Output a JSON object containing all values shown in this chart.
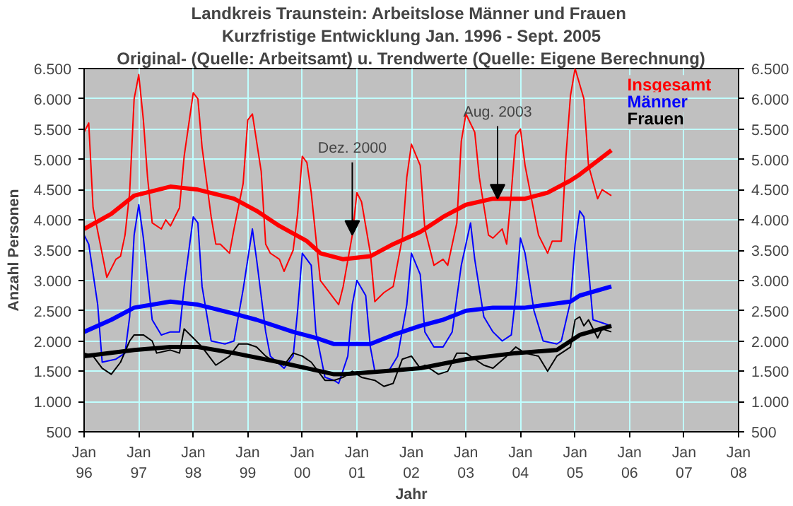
{
  "chart_data": {
    "type": "line",
    "title": "Landkreis Traunstein:  Arbeitslose Männer und Frauen",
    "subtitle": "Kurzfristige Entwicklung Jan. 1996 - Sept. 2005",
    "xlabel": "Jahr",
    "ylabel": "Anzahl Personen",
    "xlim": [
      "1996-01",
      "2008-01"
    ],
    "xticks": [
      {
        "value": "1996-01",
        "label": "Jan\n96"
      },
      {
        "value": "1997-01",
        "label": "Jan\n97"
      },
      {
        "value": "1998-01",
        "label": "Jan\n98"
      },
      {
        "value": "1999-01",
        "label": "Jan\n99"
      },
      {
        "value": "2000-01",
        "label": "Jan\n00"
      },
      {
        "value": "2001-01",
        "label": "Jan\n01"
      },
      {
        "value": "2002-01",
        "label": "Jan\n02"
      },
      {
        "value": "2003-01",
        "label": "Jan\n03"
      },
      {
        "value": "2004-01",
        "label": "Jan\n04"
      },
      {
        "value": "2005-01",
        "label": "Jan\n05"
      },
      {
        "value": "2006-01",
        "label": "Jan\n06"
      },
      {
        "value": "2007-01",
        "label": "Jan\n07"
      },
      {
        "value": "2008-01",
        "label": "Jan\n08"
      }
    ],
    "ylim": [
      500,
      6500
    ],
    "yticks": [
      500,
      {
        "value": 1000,
        "label": "1.000"
      },
      {
        "value": 1500,
        "label": "1.500"
      },
      {
        "value": 2000,
        "label": "2.000"
      },
      {
        "value": 2500,
        "label": "2.500"
      },
      {
        "value": 3000,
        "label": "3.000"
      },
      {
        "value": 3500,
        "label": "3.500"
      },
      {
        "value": 4000,
        "label": "4.000"
      },
      {
        "value": 4500,
        "label": "4.500"
      },
      {
        "value": 5000,
        "label": "5.000"
      },
      {
        "value": 5500,
        "label": "5.500"
      },
      {
        "value": 6000,
        "label": "6.000"
      },
      {
        "value": 6500,
        "label": "6.500"
      }
    ],
    "y2lim": [
      500,
      6500
    ],
    "y2ticks": [
      500,
      {
        "value": 1000,
        "label": "1.000"
      },
      {
        "value": 1500,
        "label": "1.500"
      },
      {
        "value": 2000,
        "label": "2.000"
      },
      {
        "value": 2500,
        "label": "2.500"
      },
      {
        "value": 3000,
        "label": "3.000"
      },
      {
        "value": 3500,
        "label": "3.500"
      },
      {
        "value": 4000,
        "label": "4.000"
      },
      {
        "value": 4500,
        "label": "4.500"
      },
      {
        "value": 5000,
        "label": "5.000"
      },
      {
        "value": 5500,
        "label": "5.500"
      },
      {
        "value": 6000,
        "label": "6.000"
      },
      {
        "value": 6500,
        "label": "6.500"
      }
    ],
    "grid": true,
    "legend": "top right",
    "marker": "none",
    "line_style": "solid",
    "annotations": [
      "Original- (Quelle: Arbeitsamt) u. Trendwerte (Quelle: Eigene Berechnung)",
      {
        "text": "Dez. 2000",
        "x": "2000-12",
        "y": 3750
      },
      {
        "text": "Aug. 2003",
        "x": "2003-08",
        "y": 4350
      }
    ],
    "series": [
      {
        "name": "Insgesamt",
        "color": "#ff0000",
        "x": [
          "1996-01",
          "1996-02",
          "1996-03",
          "1996-06",
          "1996-08",
          "1996-09",
          "1996-10",
          "1996-11",
          "1996-12",
          "1997-01",
          "1997-02",
          "1997-03",
          "1997-04",
          "1997-06",
          "1997-07",
          "1997-08",
          "1997-10",
          "1997-11",
          "1998-01",
          "1998-02",
          "1998-03",
          "1998-05",
          "1998-06",
          "1998-07",
          "1998-09",
          "1998-10",
          "1998-12",
          "1999-01",
          "1999-02",
          "1999-04",
          "1999-05",
          "1999-06",
          "1999-08",
          "1999-09",
          "1999-11",
          "1999-12",
          "2000-01",
          "2000-02",
          "2000-03",
          "2000-05",
          "2000-07",
          "2000-08",
          "2000-09",
          "2000-10",
          "2000-12",
          "2001-01",
          "2001-02",
          "2001-04",
          "2001-05",
          "2001-07",
          "2001-09",
          "2001-11",
          "2001-12",
          "2002-01",
          "2002-03",
          "2002-04",
          "2002-06",
          "2002-08",
          "2002-09",
          "2002-11",
          "2002-12",
          "2003-01",
          "2003-03",
          "2003-04",
          "2003-06",
          "2003-07",
          "2003-09",
          "2003-10",
          "2003-11",
          "2003-12",
          "2004-01",
          "2004-02",
          "2004-05",
          "2004-07",
          "2004-08",
          "2004-10",
          "2004-11",
          "2004-12",
          "2005-01",
          "2005-03",
          "2005-04",
          "2005-06",
          "2005-07",
          "2005-09"
        ],
        "values": [
          5450,
          5600,
          4200,
          3050,
          3350,
          3400,
          3750,
          4450,
          6000,
          6400,
          5650,
          4700,
          3950,
          3850,
          4000,
          3900,
          4200,
          5050,
          6100,
          6000,
          5200,
          4050,
          3600,
          3600,
          3450,
          3850,
          4600,
          5650,
          5750,
          4800,
          3600,
          3450,
          3350,
          3150,
          3500,
          4100,
          5050,
          4950,
          4450,
          3000,
          2800,
          2700,
          2600,
          2900,
          3750,
          4450,
          4300,
          3450,
          2650,
          2800,
          2900,
          3700,
          4700,
          5250,
          4900,
          3850,
          3250,
          3350,
          3250,
          3950,
          5300,
          5750,
          5450,
          4700,
          3750,
          3700,
          3850,
          3600,
          4450,
          5400,
          5500,
          4900,
          3750,
          3450,
          3650,
          3650,
          5050,
          6050,
          6500,
          6000,
          4900,
          4350,
          4500,
          4400
        ]
      },
      {
        "color": "#ff0000",
        "x": [
          "1996-01",
          "1996-07",
          "1996-12",
          "1997-08",
          "1998-02",
          "1998-10",
          "1999-03",
          "1999-08",
          "2000-02",
          "2000-05",
          "2000-10",
          "2001-04",
          "2001-09",
          "2002-03",
          "2002-08",
          "2003-01",
          "2003-07",
          "2004-02",
          "2004-07",
          "2004-12",
          "2005-02",
          "2005-09"
        ],
        "values": [
          3850,
          4100,
          4400,
          4550,
          4500,
          4350,
          4150,
          3900,
          3650,
          3450,
          3350,
          3400,
          3600,
          3800,
          4050,
          4250,
          4350,
          4350,
          4450,
          4650,
          4750,
          5150
        ]
      },
      {
        "name": "Männer",
        "color": "#0000ff",
        "x": [
          "1996-01",
          "1996-02",
          "1996-04",
          "1996-05",
          "1996-08",
          "1996-10",
          "1996-11",
          "1996-12",
          "1997-01",
          "1997-02",
          "1997-04",
          "1997-06",
          "1997-08",
          "1997-10",
          "1997-11",
          "1998-01",
          "1998-02",
          "1998-03",
          "1998-05",
          "1998-08",
          "1998-10",
          "1998-12",
          "1999-02",
          "1999-03",
          "1999-05",
          "1999-06",
          "1999-09",
          "1999-11",
          "1999-12",
          "2000-01",
          "2000-03",
          "2000-04",
          "2000-06",
          "2000-08",
          "2000-09",
          "2000-11",
          "2000-12",
          "2001-01",
          "2001-03",
          "2001-04",
          "2001-05",
          "2001-08",
          "2001-10",
          "2001-12",
          "2002-01",
          "2002-03",
          "2002-04",
          "2002-06",
          "2002-08",
          "2002-10",
          "2002-12",
          "2003-02",
          "2003-03",
          "2003-05",
          "2003-07",
          "2003-09",
          "2003-11",
          "2003-12",
          "2004-01",
          "2004-02",
          "2004-04",
          "2004-06",
          "2004-09",
          "2004-10",
          "2004-12",
          "2005-01",
          "2005-02",
          "2005-03",
          "2005-04",
          "2005-05",
          "2005-07",
          "2005-09"
        ],
        "values": [
          3750,
          3600,
          2600,
          1650,
          1700,
          1800,
          2400,
          3750,
          4250,
          3700,
          2350,
          2100,
          2150,
          2150,
          2900,
          4050,
          3950,
          2900,
          2000,
          1950,
          2000,
          2850,
          3850,
          3350,
          2150,
          1750,
          1550,
          1750,
          2500,
          3450,
          3250,
          2150,
          1400,
          1350,
          1300,
          1750,
          2600,
          3000,
          2750,
          1900,
          1500,
          1500,
          1750,
          2600,
          3450,
          3100,
          2150,
          1900,
          1900,
          2150,
          3250,
          3950,
          3350,
          2400,
          2150,
          2000,
          2100,
          2750,
          3700,
          3450,
          2500,
          2000,
          1950,
          2000,
          2650,
          3600,
          4150,
          4050,
          3200,
          2350,
          2300,
          2250
        ]
      },
      {
        "color": "#0000ff",
        "x": [
          "1996-01",
          "1996-07",
          "1996-12",
          "1997-08",
          "1998-02",
          "1998-10",
          "1999-03",
          "1999-11",
          "2000-04",
          "2000-08",
          "2000-10",
          "2001-04",
          "2001-09",
          "2002-03",
          "2002-08",
          "2003-01",
          "2003-07",
          "2004-02",
          "2004-12",
          "2005-02",
          "2005-09"
        ],
        "values": [
          2150,
          2350,
          2550,
          2650,
          2600,
          2450,
          2350,
          2150,
          2050,
          1950,
          1950,
          1950,
          2100,
          2250,
          2350,
          2500,
          2550,
          2550,
          2650,
          2750,
          2900
        ]
      },
      {
        "name": "Frauen",
        "color": "#000000",
        "x": [
          "1996-01",
          "1996-03",
          "1996-05",
          "1996-07",
          "1996-09",
          "1996-11",
          "1996-12",
          "1997-02",
          "1997-04",
          "1997-05",
          "1997-08",
          "1997-10",
          "1997-11",
          "1998-01",
          "1998-03",
          "1998-06",
          "1998-09",
          "1998-11",
          "1999-01",
          "1999-03",
          "1999-05",
          "1999-07",
          "1999-09",
          "1999-11",
          "2000-01",
          "2000-03",
          "2000-06",
          "2000-08",
          "2000-10",
          "2000-12",
          "2001-02",
          "2001-05",
          "2001-07",
          "2001-09",
          "2001-11",
          "2002-01",
          "2002-03",
          "2002-04",
          "2002-07",
          "2002-09",
          "2002-11",
          "2003-01",
          "2003-03",
          "2003-05",
          "2003-07",
          "2003-10",
          "2003-12",
          "2004-02",
          "2004-05",
          "2004-07",
          "2004-09",
          "2004-12",
          "2005-01",
          "2005-02",
          "2005-03",
          "2005-04",
          "2005-06",
          "2005-07",
          "2005-09"
        ],
        "values": [
          1800,
          1750,
          1550,
          1450,
          1650,
          2000,
          2100,
          2100,
          2000,
          1800,
          1850,
          1800,
          2200,
          2050,
          1900,
          1600,
          1750,
          1950,
          1950,
          1900,
          1750,
          1650,
          1600,
          1800,
          1750,
          1650,
          1350,
          1350,
          1400,
          1500,
          1400,
          1350,
          1250,
          1300,
          1700,
          1750,
          1550,
          1600,
          1450,
          1500,
          1800,
          1800,
          1700,
          1600,
          1550,
          1750,
          1900,
          1800,
          1750,
          1500,
          1750,
          1900,
          2350,
          2400,
          2250,
          2350,
          2050,
          2200,
          2150
        ]
      },
      {
        "color": "#000000",
        "x": [
          "1996-01",
          "1996-12",
          "1997-08",
          "1998-02",
          "1998-10",
          "1999-08",
          "2000-08",
          "2000-10",
          "2001-07",
          "2002-03",
          "2003-01",
          "2003-12",
          "2004-09",
          "2005-02",
          "2005-09"
        ],
        "values": [
          1750,
          1850,
          1900,
          1900,
          1800,
          1650,
          1450,
          1450,
          1500,
          1550,
          1700,
          1800,
          1850,
          2100,
          2250
        ]
      }
    ]
  }
}
